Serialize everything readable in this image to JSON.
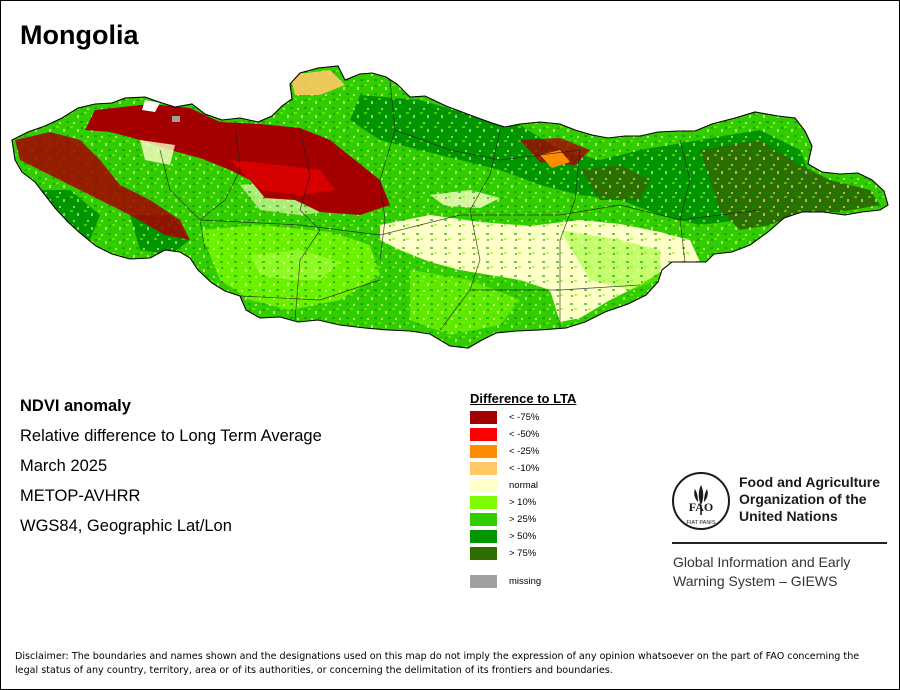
{
  "title": "Mongolia",
  "info_lines": [
    "NDVI anomaly",
    "Relative difference to Long Term Average",
    "March 2025",
    "METOP-AVHRR",
    "WGS84, Geographic Lat/Lon"
  ],
  "legend": {
    "title": "Difference to LTA",
    "items": [
      {
        "label": "< -75%",
        "color": "#a50000"
      },
      {
        "label": "< -50%",
        "color": "#ff0000"
      },
      {
        "label": "< -25%",
        "color": "#ff8c00"
      },
      {
        "label": "< -10%",
        "color": "#ffc864"
      },
      {
        "label": "normal",
        "color": "#ffffc8"
      },
      {
        "label": "> 10%",
        "color": "#7cfc00"
      },
      {
        "label": "> 25%",
        "color": "#32cd00"
      },
      {
        "label": "> 50%",
        "color": "#009600"
      },
      {
        "label": "> 75%",
        "color": "#2d6e00"
      }
    ],
    "missing": {
      "label": "missing",
      "color": "#a0a0a0"
    }
  },
  "organization": {
    "logo_letters": "FAO",
    "logo_motto": "FIAT PANIS",
    "name_lines": [
      "Food and Agriculture",
      "Organization of the",
      "United Nations"
    ],
    "program_lines": [
      "Global Information and Early",
      "Warning System – GIEWS"
    ]
  },
  "disclaimer": "Disclaimer: The boundaries and names shown and the designations used on this map do not imply the expression of any opinion whatsoever on the part of FAO concerning the legal status of any country, territory, area or of its authorities, or concerning the delimitation of its frontiers and boundaries."
}
